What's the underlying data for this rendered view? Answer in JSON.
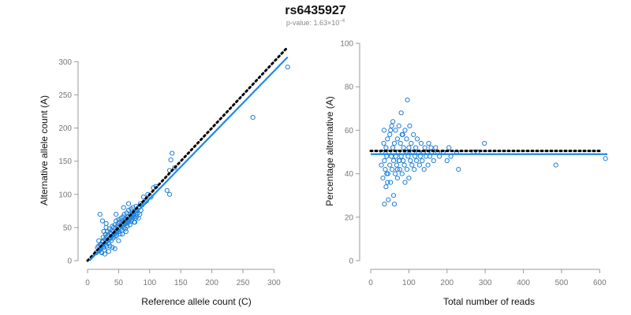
{
  "figure": {
    "title": "rs6435927",
    "subtitle_prefix": "p-value: 1.63×10",
    "subtitle_exponent": "−4"
  },
  "colors": {
    "points": "#1f7fd6",
    "fit": "#1f8ae6",
    "reference": "#000000",
    "axis": "#999999"
  },
  "chart_data": [
    {
      "type": "scatter",
      "title": "",
      "xlabel": "Reference allele count (C)",
      "ylabel": "Alternative allele count (A)",
      "xlim": [
        0,
        330
      ],
      "ylim": [
        0,
        310
      ],
      "xticks": [
        0,
        50,
        100,
        150,
        200,
        250,
        300
      ],
      "yticks": [
        0,
        50,
        100,
        150,
        200,
        250,
        300
      ],
      "grid": false,
      "reference_line": {
        "style": "dotted",
        "x0": 0,
        "y0": 0,
        "x1": 322,
        "y1": 322
      },
      "fit_line": {
        "style": "solid",
        "x0": 3,
        "y0": 0,
        "x1": 322,
        "y1": 307
      },
      "points": [
        [
          14,
          12
        ],
        [
          16,
          20
        ],
        [
          18,
          22
        ],
        [
          19,
          15
        ],
        [
          20,
          18
        ],
        [
          21,
          25
        ],
        [
          22,
          24
        ],
        [
          22,
          13
        ],
        [
          23,
          12
        ],
        [
          24,
          28
        ],
        [
          25,
          35
        ],
        [
          25,
          30
        ],
        [
          26,
          20
        ],
        [
          27,
          16
        ],
        [
          28,
          24
        ],
        [
          28,
          32
        ],
        [
          29,
          40
        ],
        [
          30,
          28
        ],
        [
          30,
          36
        ],
        [
          31,
          22
        ],
        [
          32,
          30
        ],
        [
          32,
          44
        ],
        [
          33,
          38
        ],
        [
          34,
          26
        ],
        [
          35,
          32
        ],
        [
          35,
          48
        ],
        [
          36,
          42
        ],
        [
          37,
          35
        ],
        [
          38,
          30
        ],
        [
          38,
          40
        ],
        [
          39,
          46
        ],
        [
          40,
          38
        ],
        [
          40,
          52
        ],
        [
          41,
          34
        ],
        [
          42,
          44
        ],
        [
          42,
          50
        ],
        [
          43,
          40
        ],
        [
          44,
          36
        ],
        [
          44,
          54
        ],
        [
          45,
          48
        ],
        [
          46,
          42
        ],
        [
          46,
          60
        ],
        [
          47,
          38
        ],
        [
          48,
          52
        ],
        [
          48,
          46
        ],
        [
          49,
          56
        ],
        [
          50,
          44
        ],
        [
          50,
          62
        ],
        [
          51,
          50
        ],
        [
          52,
          40
        ],
        [
          52,
          58
        ],
        [
          53,
          48
        ],
        [
          54,
          64
        ],
        [
          54,
          54
        ],
        [
          55,
          46
        ],
        [
          56,
          60
        ],
        [
          56,
          52
        ],
        [
          57,
          66
        ],
        [
          58,
          50
        ],
        [
          58,
          58
        ],
        [
          59,
          70
        ],
        [
          60,
          56
        ],
        [
          60,
          62
        ],
        [
          61,
          48
        ],
        [
          62,
          64
        ],
        [
          62,
          56
        ],
        [
          63,
          72
        ],
        [
          64,
          60
        ],
        [
          64,
          52
        ],
        [
          65,
          66
        ],
        [
          66,
          58
        ],
        [
          66,
          76
        ],
        [
          67,
          62
        ],
        [
          68,
          70
        ],
        [
          68,
          54
        ],
        [
          69,
          64
        ],
        [
          70,
          78
        ],
        [
          70,
          60
        ],
        [
          71,
          68
        ],
        [
          72,
          72
        ],
        [
          72,
          62
        ],
        [
          73,
          80
        ],
        [
          74,
          66
        ],
        [
          75,
          70
        ],
        [
          75,
          58
        ],
        [
          76,
          74
        ],
        [
          77,
          64
        ],
        [
          78,
          82
        ],
        [
          78,
          70
        ],
        [
          79,
          66
        ],
        [
          80,
          76
        ],
        [
          81,
          72
        ],
        [
          82,
          80
        ],
        [
          84,
          70
        ],
        [
          85,
          86
        ],
        [
          86,
          76
        ],
        [
          88,
          84
        ],
        [
          90,
          96
        ],
        [
          92,
          88
        ],
        [
          95,
          90
        ],
        [
          97,
          100
        ],
        [
          102,
          96
        ],
        [
          106,
          110
        ],
        [
          110,
          112
        ],
        [
          128,
          106
        ],
        [
          132,
          100
        ],
        [
          132,
          136
        ],
        [
          134,
          152
        ],
        [
          136,
          162
        ],
        [
          140,
          140
        ],
        [
          266,
          216
        ],
        [
          322,
          292
        ],
        [
          20,
          70
        ],
        [
          24,
          60
        ],
        [
          30,
          50
        ],
        [
          34,
          14
        ],
        [
          26,
          44
        ],
        [
          44,
          18
        ],
        [
          18,
          30
        ],
        [
          28,
          10
        ],
        [
          36,
          22
        ],
        [
          30,
          56
        ],
        [
          40,
          20
        ],
        [
          50,
          30
        ],
        [
          46,
          70
        ],
        [
          56,
          40
        ],
        [
          62,
          44
        ],
        [
          58,
          80
        ],
        [
          76,
          58
        ],
        [
          82,
          64
        ],
        [
          66,
          86
        ]
      ]
    },
    {
      "type": "scatter",
      "title": "",
      "xlabel": "Total number of reads",
      "ylabel": "Percentage alternative (A)",
      "xlim": [
        0,
        620
      ],
      "ylim": [
        0,
        100
      ],
      "xticks": [
        0,
        100,
        200,
        300,
        400,
        500,
        600
      ],
      "yticks": [
        0,
        20,
        40,
        60,
        80,
        100
      ],
      "grid": false,
      "reference_line": {
        "style": "dotted",
        "y": 50.5,
        "x0": 0,
        "x1": 600
      },
      "fit_line": {
        "style": "solid",
        "y": 49,
        "x0": 0,
        "x1": 620
      },
      "points": [
        [
          28,
          44
        ],
        [
          30,
          50
        ],
        [
          32,
          38
        ],
        [
          34,
          54
        ],
        [
          35,
          60
        ],
        [
          36,
          46
        ],
        [
          38,
          42
        ],
        [
          40,
          52
        ],
        [
          40,
          34
        ],
        [
          42,
          48
        ],
        [
          44,
          56
        ],
        [
          45,
          40
        ],
        [
          46,
          28
        ],
        [
          48,
          50
        ],
        [
          50,
          44
        ],
        [
          50,
          58
        ],
        [
          52,
          36
        ],
        [
          54,
          48
        ],
        [
          55,
          62
        ],
        [
          56,
          42
        ],
        [
          58,
          52
        ],
        [
          60,
          46
        ],
        [
          60,
          30
        ],
        [
          62,
          54
        ],
        [
          64,
          40
        ],
        [
          65,
          60
        ],
        [
          66,
          48
        ],
        [
          68,
          44
        ],
        [
          70,
          56
        ],
        [
          70,
          38
        ],
        [
          72,
          50
        ],
        [
          74,
          62
        ],
        [
          75,
          46
        ],
        [
          76,
          42
        ],
        [
          78,
          54
        ],
        [
          80,
          48
        ],
        [
          80,
          68
        ],
        [
          82,
          40
        ],
        [
          84,
          58
        ],
        [
          85,
          46
        ],
        [
          86,
          52
        ],
        [
          88,
          44
        ],
        [
          90,
          60
        ],
        [
          90,
          36
        ],
        [
          92,
          50
        ],
        [
          94,
          56
        ],
        [
          95,
          42
        ],
        [
          96,
          74
        ],
        [
          98,
          48
        ],
        [
          100,
          52
        ],
        [
          100,
          38
        ],
        [
          102,
          62
        ],
        [
          104,
          46
        ],
        [
          106,
          54
        ],
        [
          108,
          44
        ],
        [
          110,
          50
        ],
        [
          112,
          58
        ],
        [
          114,
          42
        ],
        [
          116,
          48
        ],
        [
          118,
          52
        ],
        [
          120,
          46
        ],
        [
          122,
          56
        ],
        [
          125,
          50
        ],
        [
          128,
          44
        ],
        [
          130,
          48
        ],
        [
          132,
          54
        ],
        [
          135,
          46
        ],
        [
          138,
          50
        ],
        [
          140,
          42
        ],
        [
          142,
          52
        ],
        [
          145,
          48
        ],
        [
          148,
          50
        ],
        [
          150,
          44
        ],
        [
          152,
          54
        ],
        [
          155,
          48
        ],
        [
          158,
          52
        ],
        [
          160,
          50
        ],
        [
          165,
          46
        ],
        [
          170,
          52
        ],
        [
          175,
          50
        ],
        [
          180,
          48
        ],
        [
          190,
          50
        ],
        [
          200,
          46
        ],
        [
          205,
          52
        ],
        [
          210,
          48
        ],
        [
          225,
          50
        ],
        [
          230,
          42
        ],
        [
          270,
          50
        ],
        [
          280,
          50
        ],
        [
          298,
          54
        ],
        [
          485,
          44
        ],
        [
          615,
          47
        ],
        [
          36,
          26
        ],
        [
          62,
          26
        ],
        [
          44,
          36
        ],
        [
          70,
          42
        ],
        [
          52,
          60
        ],
        [
          82,
          58
        ],
        [
          96,
          50
        ],
        [
          58,
          64
        ],
        [
          42,
          40
        ],
        [
          74,
          46
        ]
      ]
    }
  ]
}
